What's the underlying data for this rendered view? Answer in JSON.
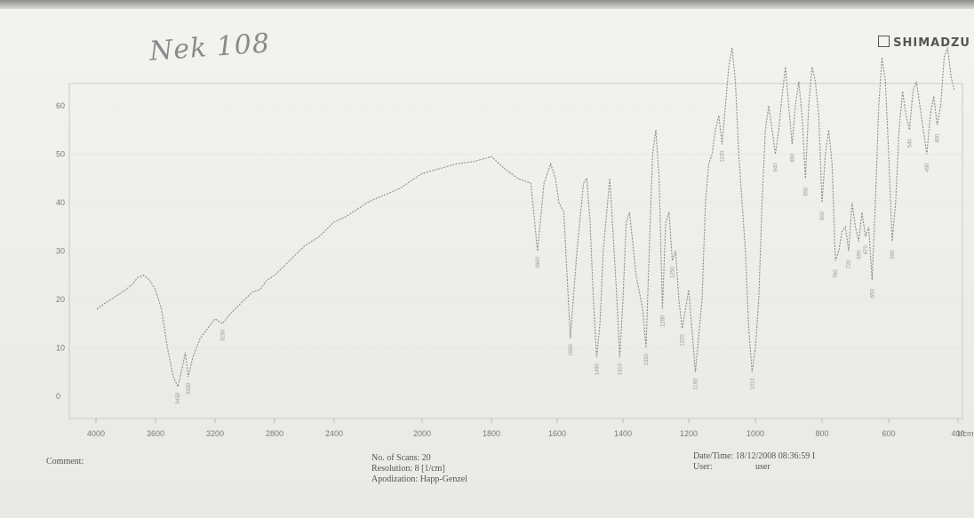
{
  "page": {
    "handwritten_label": "Nek 108",
    "brand": "SHIMADZU",
    "comment_label": "Comment:",
    "scan": {
      "scans": "No. of Scans: 20",
      "resolution": "Resolution:   8 [1/cm]",
      "apodization": "Apodization:  Happ-Genzel"
    },
    "datetime": "Date/Time: 18/12/2008 08:36:59 I",
    "user_label": "User:",
    "user_value": "user",
    "x_unit": "1/cm"
  },
  "chart_data": {
    "type": "line",
    "xlabel": "1/cm",
    "ylabel": "",
    "xlim": [
      4000,
      400
    ],
    "ylim": [
      -5,
      75
    ],
    "x_ticks": [
      4000,
      3600,
      3200,
      2800,
      2400,
      2000,
      1800,
      1600,
      1400,
      1200,
      1000,
      800,
      600,
      400
    ],
    "y_ticks": [
      0,
      10,
      20,
      30,
      40,
      50,
      60
    ],
    "y_tick_labels": [
      "0",
      "10",
      "20",
      "30",
      "40",
      "50",
      "60"
    ],
    "series": [
      {
        "x": [
          3995,
          3950,
          3900,
          3850,
          3800,
          3760,
          3720,
          3680,
          3640,
          3600,
          3560,
          3520,
          3480,
          3450,
          3420,
          3400,
          3380,
          3350,
          3300,
          3250,
          3200,
          3150,
          3100,
          3050,
          3000,
          2950,
          2900,
          2850,
          2800,
          2750,
          2700,
          2650,
          2600,
          2550,
          2500,
          2450,
          2400,
          2350,
          2300,
          2250,
          2200,
          2150,
          2100,
          2050,
          2000,
          1950,
          1900,
          1850,
          1800,
          1760,
          1720,
          1680,
          1660,
          1640,
          1620,
          1605,
          1595,
          1580,
          1560,
          1540,
          1520,
          1510,
          1500,
          1490,
          1480,
          1470,
          1460,
          1440,
          1420,
          1410,
          1400,
          1390,
          1380,
          1360,
          1340,
          1330,
          1320,
          1310,
          1300,
          1290,
          1280,
          1270,
          1260,
          1250,
          1240,
          1230,
          1220,
          1200,
          1180,
          1160,
          1150,
          1140,
          1130,
          1120,
          1110,
          1100,
          1090,
          1080,
          1070,
          1060,
          1050,
          1040,
          1030,
          1020,
          1010,
          1000,
          990,
          980,
          970,
          960,
          950,
          940,
          930,
          920,
          910,
          900,
          890,
          880,
          870,
          860,
          850,
          840,
          830,
          820,
          810,
          800,
          790,
          780,
          770,
          760,
          750,
          740,
          730,
          720,
          710,
          700,
          690,
          680,
          670,
          660,
          650,
          640,
          630,
          620,
          610,
          600,
          590,
          580,
          570,
          560,
          550,
          540,
          530,
          520,
          510,
          500,
          490,
          480,
          470,
          460,
          450,
          440,
          430,
          420,
          410
        ],
        "y": [
          18,
          19,
          20,
          21,
          22,
          23,
          24.5,
          25,
          24,
          22,
          18,
          10,
          4,
          2,
          6,
          9,
          4,
          8,
          12,
          14,
          16,
          15,
          17,
          18.5,
          20,
          21.5,
          22,
          24,
          25,
          26.5,
          28,
          29.5,
          31,
          32,
          33,
          34.5,
          36,
          37,
          38.5,
          40,
          41,
          42,
          43,
          44.5,
          46,
          47,
          48,
          48.5,
          49.5,
          47,
          45,
          44,
          30,
          44,
          48,
          45,
          40,
          38,
          12,
          30,
          44,
          45,
          36,
          20,
          8,
          15,
          30,
          45,
          22,
          8,
          20,
          36,
          38,
          25,
          18,
          10,
          30,
          50,
          55,
          45,
          18,
          36,
          38,
          28,
          30,
          20,
          14,
          22,
          5,
          20,
          40,
          48,
          50,
          55,
          58,
          52,
          60,
          68,
          72,
          65,
          50,
          40,
          30,
          14,
          5,
          10,
          20,
          40,
          55,
          60,
          55,
          50,
          55,
          62,
          68,
          60,
          52,
          60,
          65,
          58,
          45,
          60,
          68,
          65,
          58,
          40,
          50,
          55,
          48,
          28,
          30,
          34,
          35,
          30,
          40,
          35,
          32,
          38,
          33,
          35,
          24,
          40,
          60,
          70,
          65,
          50,
          32,
          40,
          55,
          63,
          58,
          55,
          63,
          65,
          60,
          55,
          50,
          58,
          62,
          56,
          60,
          70,
          72,
          66,
          63
        ]
      }
    ]
  }
}
